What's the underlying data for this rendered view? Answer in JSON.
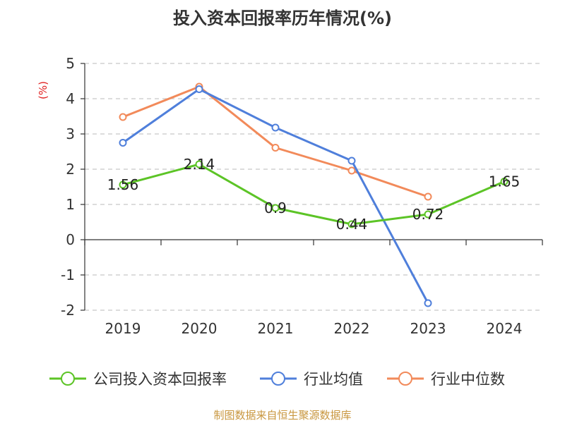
{
  "title": "投入资本回报率历年情况(%)",
  "source": "制图数据来自恒生聚源数据库",
  "chart_data": {
    "type": "line",
    "title": "投入资本回报率历年情况(%)",
    "ylabel": "(%)",
    "xlabel": "",
    "ylim": [
      -2,
      5
    ],
    "yticks": [
      -2,
      -1,
      0,
      1,
      2,
      3,
      4,
      5
    ],
    "categories": [
      "2019",
      "2020",
      "2021",
      "2022",
      "2023",
      "2024"
    ],
    "grid": true,
    "legend_position": "bottom",
    "series": [
      {
        "name": "公司投入资本回报率",
        "color": "#5cc426",
        "values": [
          1.56,
          2.14,
          0.9,
          0.44,
          0.72,
          1.65
        ],
        "labels": [
          "1.56",
          "2.14",
          "0.9",
          "0.44",
          "0.72",
          "1.65"
        ]
      },
      {
        "name": "行业均值",
        "color": "#4f7fdb",
        "values": [
          2.75,
          4.27,
          3.18,
          2.24,
          -1.8,
          null
        ]
      },
      {
        "name": "行业中位数",
        "color": "#f28a5a",
        "values": [
          3.48,
          4.34,
          2.61,
          1.96,
          1.22,
          null
        ]
      }
    ]
  }
}
